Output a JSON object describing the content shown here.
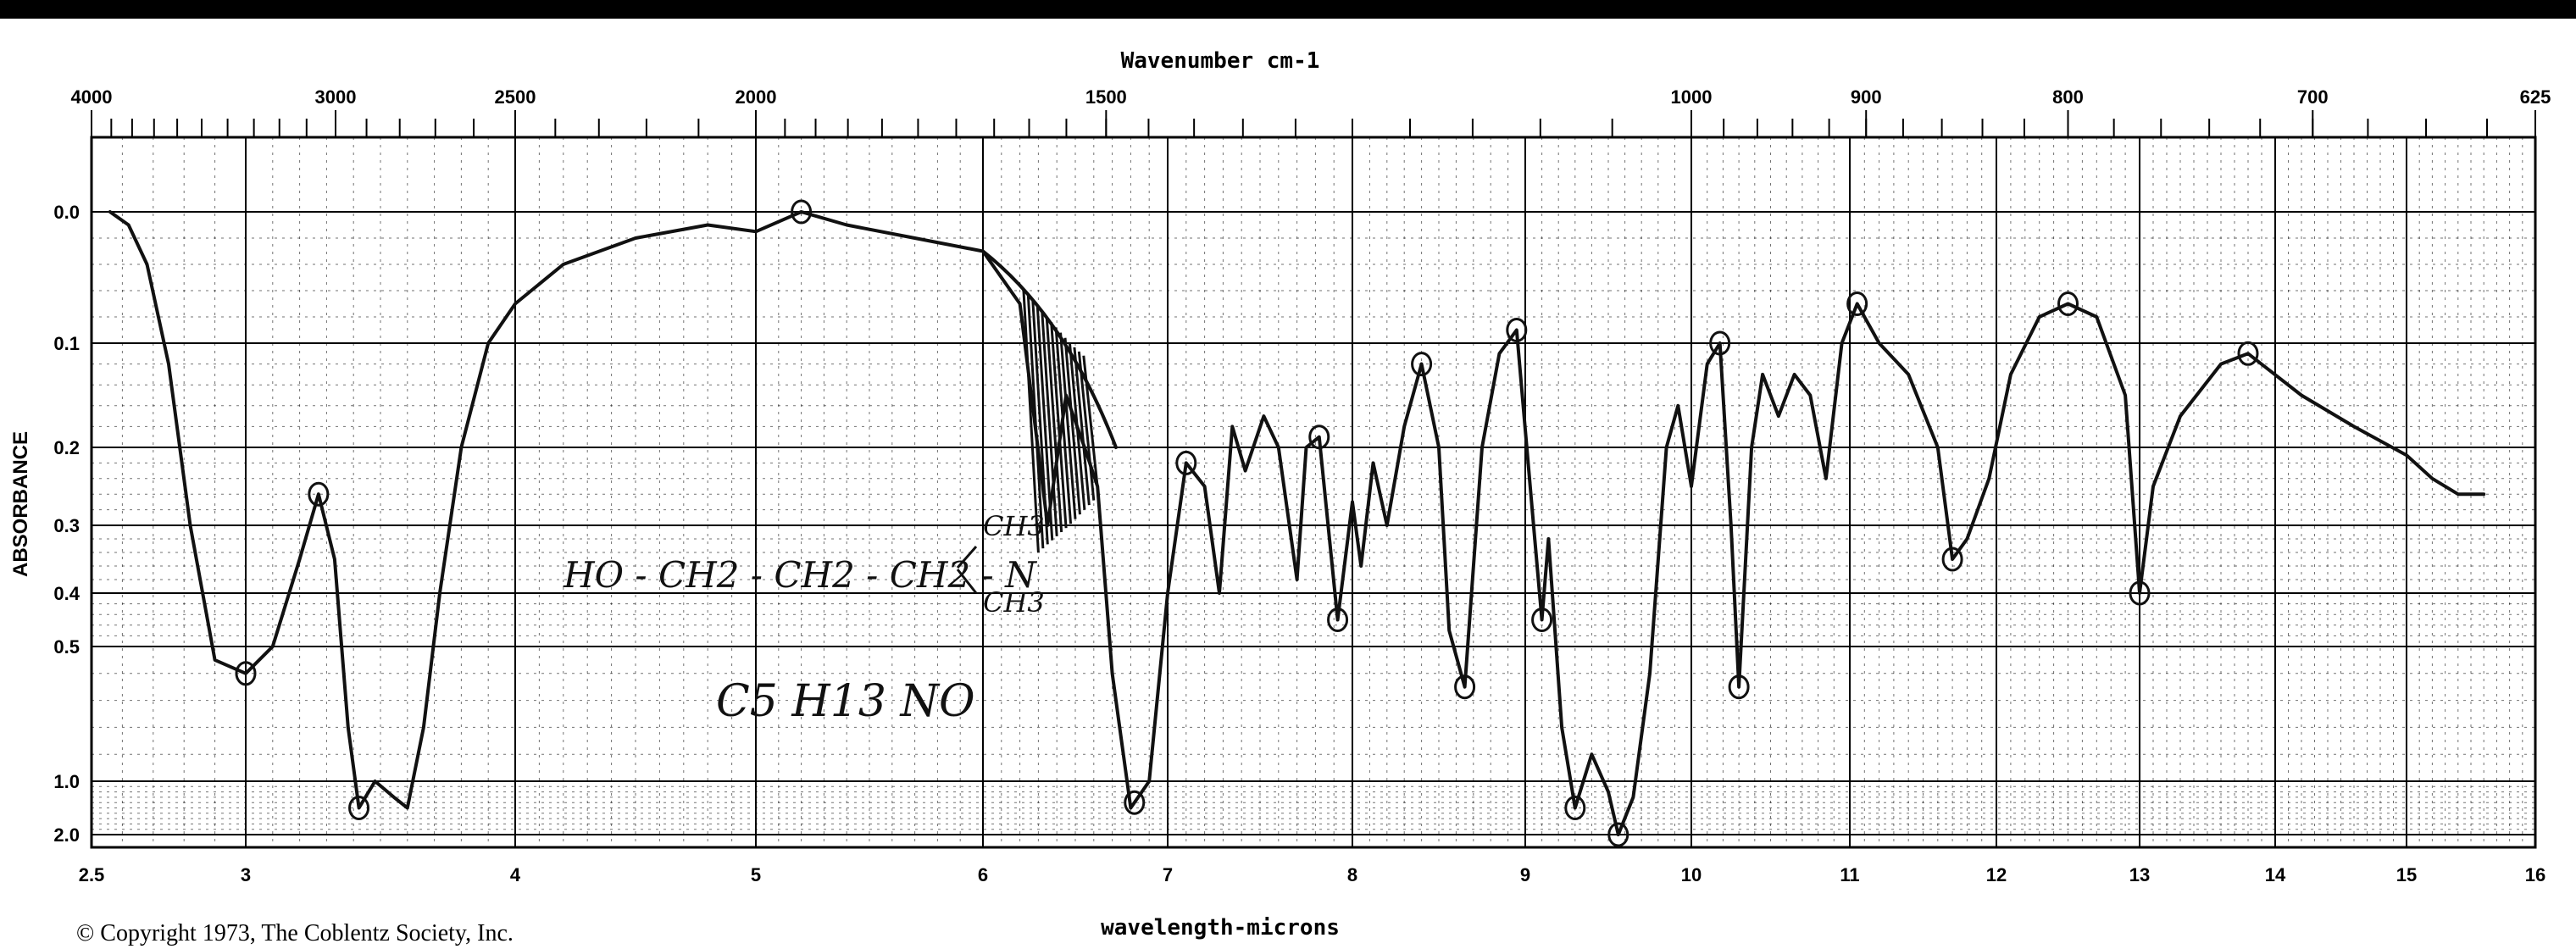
{
  "chart_data": {
    "type": "line",
    "top_axis_title": "Wavenumber cm-1",
    "bottom_axis_title": "wavelength-microns",
    "ylabel": "ABSORBANCE",
    "copyright": "© Copyright 1973, The Coblentz Society, Inc.",
    "annotation_formula_line1": "HO - CH2 - CH2 - CH2 - N",
    "annotation_ch3_top": "CH3",
    "annotation_ch3_bottom": "CH3",
    "annotation_molecular_formula": "C5 H13 NO",
    "x_wavelength_ticks": [
      {
        "v": 2.5,
        "label": "2.5"
      },
      {
        "v": 3,
        "label": "3"
      },
      {
        "v": 4,
        "label": "4"
      },
      {
        "v": 5,
        "label": "5"
      },
      {
        "v": 6,
        "label": "6"
      },
      {
        "v": 7,
        "label": "7"
      },
      {
        "v": 8,
        "label": "8"
      },
      {
        "v": 9,
        "label": "9"
      },
      {
        "v": 10,
        "label": "10"
      },
      {
        "v": 11,
        "label": "11"
      },
      {
        "v": 12,
        "label": "12"
      },
      {
        "v": 13,
        "label": "13"
      },
      {
        "v": 14,
        "label": "14"
      },
      {
        "v": 15,
        "label": "15"
      },
      {
        "v": 16,
        "label": "16"
      }
    ],
    "x_wavenumber_ticks": [
      {
        "v": 4000,
        "label": "4000"
      },
      {
        "v": 3000,
        "label": "3000"
      },
      {
        "v": 2500,
        "label": "2500"
      },
      {
        "v": 2000,
        "label": "2000"
      },
      {
        "v": 1500,
        "label": "1500"
      },
      {
        "v": 1000,
        "label": "1000"
      },
      {
        "v": 900,
        "label": "900"
      },
      {
        "v": 800,
        "label": "800"
      },
      {
        "v": 700,
        "label": "700"
      },
      {
        "v": 625,
        "label": "625"
      }
    ],
    "y_ticks": [
      {
        "v": 0.0,
        "label": "0.0"
      },
      {
        "v": 0.1,
        "label": "0.1"
      },
      {
        "v": 0.2,
        "label": "0.2"
      },
      {
        "v": 0.3,
        "label": "0.3"
      },
      {
        "v": 0.4,
        "label": "0.4"
      },
      {
        "v": 0.5,
        "label": "0.5"
      },
      {
        "v": 1.0,
        "label": "1.0"
      },
      {
        "v": 2.0,
        "label": "2.0"
      }
    ],
    "y_scale": "log-transmittance (absorbance)",
    "x_range_microns": [
      2.5,
      16
    ],
    "series": [
      {
        "points": [
          [
            2.56,
            0.0
          ],
          [
            2.62,
            0.01
          ],
          [
            2.68,
            0.04
          ],
          [
            2.75,
            0.12
          ],
          [
            2.82,
            0.3
          ],
          [
            2.9,
            0.55
          ],
          [
            3.0,
            0.6
          ],
          [
            3.1,
            0.5
          ],
          [
            3.2,
            0.35
          ],
          [
            3.27,
            0.26
          ],
          [
            3.33,
            0.35
          ],
          [
            3.38,
            0.8
          ],
          [
            3.42,
            1.5
          ],
          [
            3.48,
            1.0
          ],
          [
            3.55,
            1.3
          ],
          [
            3.6,
            1.5
          ],
          [
            3.66,
            0.8
          ],
          [
            3.72,
            0.4
          ],
          [
            3.8,
            0.2
          ],
          [
            3.9,
            0.1
          ],
          [
            4.0,
            0.07
          ],
          [
            4.2,
            0.04
          ],
          [
            4.5,
            0.02
          ],
          [
            4.8,
            0.01
          ],
          [
            5.0,
            0.015
          ],
          [
            5.2,
            0.0
          ],
          [
            5.4,
            0.01
          ],
          [
            5.7,
            0.02
          ],
          [
            6.0,
            0.03
          ],
          [
            6.2,
            0.07
          ],
          [
            6.35,
            0.3
          ],
          [
            6.45,
            0.15
          ],
          [
            6.55,
            0.2
          ],
          [
            6.62,
            0.25
          ],
          [
            6.7,
            0.6
          ],
          [
            6.8,
            1.5
          ],
          [
            6.9,
            1.0
          ],
          [
            7.0,
            0.4
          ],
          [
            7.1,
            0.22
          ],
          [
            7.2,
            0.25
          ],
          [
            7.28,
            0.4
          ],
          [
            7.35,
            0.18
          ],
          [
            7.42,
            0.23
          ],
          [
            7.52,
            0.17
          ],
          [
            7.6,
            0.2
          ],
          [
            7.7,
            0.38
          ],
          [
            7.75,
            0.2
          ],
          [
            7.82,
            0.19
          ],
          [
            7.92,
            0.45
          ],
          [
            8.0,
            0.27
          ],
          [
            8.05,
            0.36
          ],
          [
            8.12,
            0.22
          ],
          [
            8.2,
            0.3
          ],
          [
            8.3,
            0.18
          ],
          [
            8.4,
            0.12
          ],
          [
            8.5,
            0.2
          ],
          [
            8.56,
            0.47
          ],
          [
            8.65,
            0.65
          ],
          [
            8.75,
            0.2
          ],
          [
            8.85,
            0.11
          ],
          [
            8.95,
            0.09
          ],
          [
            9.05,
            0.3
          ],
          [
            9.1,
            0.45
          ],
          [
            9.14,
            0.32
          ],
          [
            9.22,
            0.8
          ],
          [
            9.3,
            1.5
          ],
          [
            9.4,
            0.9
          ],
          [
            9.5,
            1.2
          ],
          [
            9.56,
            2.0
          ],
          [
            9.65,
            1.3
          ],
          [
            9.75,
            0.6
          ],
          [
            9.85,
            0.2
          ],
          [
            9.92,
            0.16
          ],
          [
            10.0,
            0.25
          ],
          [
            10.1,
            0.12
          ],
          [
            10.18,
            0.1
          ],
          [
            10.25,
            0.3
          ],
          [
            10.3,
            0.65
          ],
          [
            10.38,
            0.2
          ],
          [
            10.45,
            0.13
          ],
          [
            10.55,
            0.17
          ],
          [
            10.65,
            0.13
          ],
          [
            10.75,
            0.15
          ],
          [
            10.85,
            0.24
          ],
          [
            10.95,
            0.1
          ],
          [
            11.05,
            0.07
          ],
          [
            11.2,
            0.1
          ],
          [
            11.4,
            0.13
          ],
          [
            11.6,
            0.2
          ],
          [
            11.7,
            0.35
          ],
          [
            11.8,
            0.32
          ],
          [
            11.95,
            0.24
          ],
          [
            12.1,
            0.13
          ],
          [
            12.3,
            0.08
          ],
          [
            12.5,
            0.07
          ],
          [
            12.7,
            0.08
          ],
          [
            12.9,
            0.15
          ],
          [
            13.0,
            0.4
          ],
          [
            13.1,
            0.25
          ],
          [
            13.3,
            0.17
          ],
          [
            13.6,
            0.12
          ],
          [
            13.8,
            0.11
          ],
          [
            14.2,
            0.15
          ],
          [
            14.6,
            0.18
          ],
          [
            15.0,
            0.21
          ],
          [
            15.2,
            0.24
          ],
          [
            15.4,
            0.26
          ],
          [
            15.6,
            0.26
          ]
        ]
      }
    ],
    "circled_peaks_microns": [
      3.0,
      3.27,
      3.42,
      5.2,
      6.82,
      7.92,
      8.65,
      9.1,
      9.3,
      9.56,
      10.3,
      11.7,
      13.0,
      13.8,
      12.5,
      11.05,
      10.18,
      8.95,
      8.4,
      7.82,
      7.1
    ]
  }
}
